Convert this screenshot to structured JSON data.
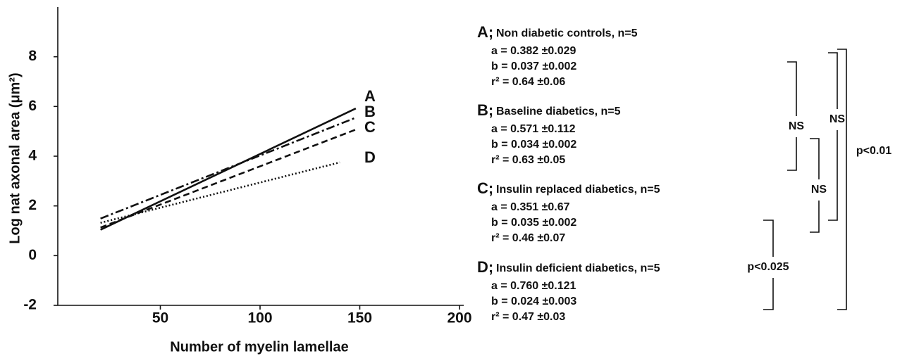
{
  "chart_data": {
    "type": "line",
    "x_label": "Number of myelin lamellae",
    "y_label": "Log nat axonal area (μm²)",
    "xlim": [
      0,
      200
    ],
    "xticks": [
      50,
      100,
      150,
      200
    ],
    "ylim": [
      -2,
      10
    ],
    "yticks": [
      -2,
      0,
      2,
      4,
      6,
      8
    ],
    "series": [
      {
        "name": "A",
        "color": "#111111",
        "dash": "none",
        "x": [
          20,
          148
        ],
        "values": [
          1.04,
          5.92
        ]
      },
      {
        "name": "B",
        "color": "#111111",
        "dash": "12,4,3,4",
        "x": [
          20,
          148
        ],
        "values": [
          1.49,
          5.55
        ]
      },
      {
        "name": "C",
        "color": "#111111",
        "dash": "9,5",
        "x": [
          20,
          148
        ],
        "values": [
          1.13,
          5.07
        ]
      },
      {
        "name": "D",
        "color": "#111111",
        "dash": "2,3",
        "x": [
          20,
          140
        ],
        "values": [
          1.32,
          3.75
        ]
      }
    ]
  },
  "annotations": {
    "groups": [
      {
        "letter": "A;",
        "text": "Non diabetic controls, n=5",
        "stats": [
          "a = 0.382  ±0.029",
          "b = 0.037  ±0.002",
          "r² = 0.64  ±0.06"
        ]
      },
      {
        "letter": "B;",
        "text": "Baseline diabetics, n=5",
        "stats": [
          "a = 0.571  ±0.112",
          "b = 0.034  ±0.002",
          "r² = 0.63  ±0.05"
        ]
      },
      {
        "letter": "C;",
        "text": "Insulin replaced diabetics, n=5",
        "stats": [
          "a = 0.351  ±0.67",
          "b = 0.035  ±0.002",
          "r² = 0.46  ±0.07"
        ]
      },
      {
        "letter": "D;",
        "text": "Insulin deficient diabetics, n=5",
        "stats": [
          "a = 0.760  ±0.121",
          "b = 0.024  ±0.003",
          "r² = 0.47  ±0.03"
        ]
      }
    ],
    "comparisons": [
      "NS",
      "NS",
      "NS",
      "p<0.025",
      "p<0.01"
    ]
  }
}
